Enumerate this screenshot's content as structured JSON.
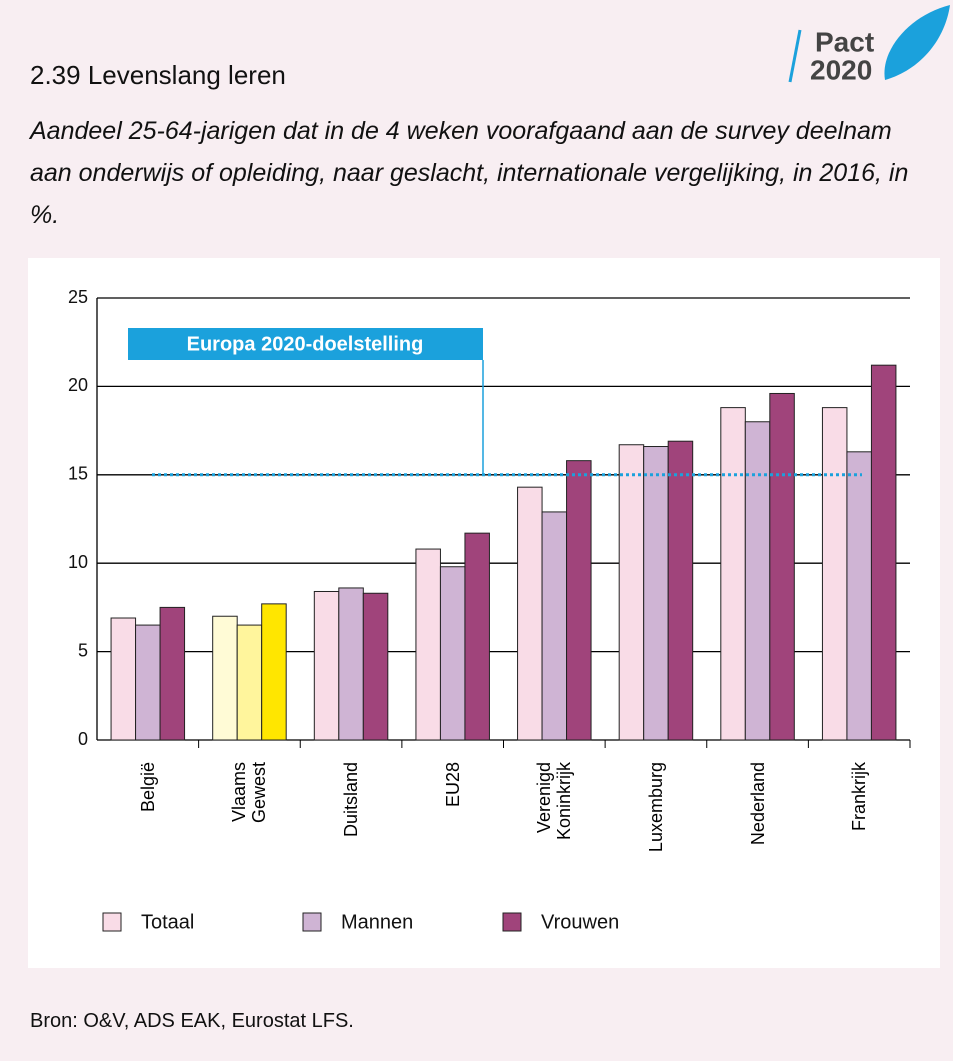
{
  "header": {
    "title": "2.39 Levenslang leren",
    "subtitle": "Aandeel 25-64-jarigen dat in de 4 weken voorafgaand aan de survey deelnam aan onderwijs of opleiding, naar geslacht, internationale vergelijking, in 2016, in %.",
    "logo": [
      "Pact",
      "2020"
    ]
  },
  "chart_data": {
    "type": "bar",
    "categories": [
      "België",
      "Vlaams Gewest",
      "Duitsland",
      "EU28",
      "Verenigd Koninkrijk",
      "Luxemburg",
      "Nederland",
      "Frankrijk"
    ],
    "series": [
      {
        "name": "Totaal",
        "color": "#f9dce7",
        "values": [
          6.9,
          7.0,
          8.4,
          10.8,
          14.3,
          16.7,
          18.8,
          18.8
        ]
      },
      {
        "name": "Mannen",
        "color": "#cfb4d4",
        "values": [
          6.5,
          6.5,
          8.6,
          9.8,
          12.9,
          16.6,
          18.0,
          16.3
        ]
      },
      {
        "name": "Vrouwen",
        "color": "#a0447b",
        "values": [
          7.5,
          7.7,
          8.3,
          11.7,
          15.8,
          16.9,
          19.6,
          21.2
        ]
      }
    ],
    "highlight": {
      "category_index": 1,
      "colors": [
        "#fffbd6",
        "#fff59c",
        "#ffe600"
      ]
    },
    "target": {
      "label": "Europa 2020-doelstelling",
      "value": 15,
      "color": "#1ba1dc"
    },
    "ylim": [
      0,
      25
    ],
    "yticks": [
      0,
      5,
      10,
      15,
      20,
      25
    ],
    "grid": true
  },
  "source": "Bron: O&V, ADS EAK, Eurostat LFS."
}
